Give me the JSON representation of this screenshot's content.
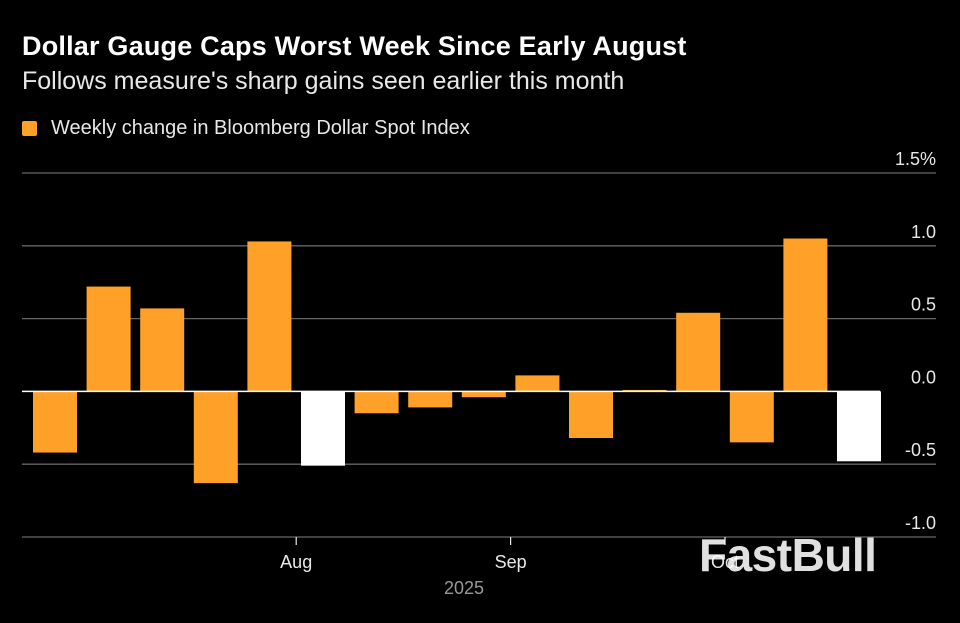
{
  "title": "Dollar Gauge Caps Worst Week Since Early August",
  "subtitle": "Follows measure's sharp gains seen earlier this month",
  "legend": {
    "label": "Weekly change in Bloomberg Dollar Spot Index",
    "color": "#ffa028"
  },
  "watermark": "FastBull",
  "colors": {
    "positive_bar": "#ffa028",
    "highlight_bar": "#ffffff",
    "grid": "#666666",
    "zero_line": "#ffffff",
    "tick_text": "#e8e8e8",
    "year_text": "#999999"
  },
  "chart_data": {
    "type": "bar",
    "title": "Dollar Gauge Caps Worst Week Since Early August",
    "subtitle": "Follows measure's sharp gains seen earlier this month",
    "xlabel": "",
    "ylabel": "",
    "ylim": [
      -1.0,
      1.5
    ],
    "yticks": [
      {
        "value": 1.5,
        "label": "1.5%"
      },
      {
        "value": 1.0,
        "label": "1.0"
      },
      {
        "value": 0.5,
        "label": "0.5"
      },
      {
        "value": 0.0,
        "label": "0.0"
      },
      {
        "value": -0.5,
        "label": "-0.5"
      },
      {
        "value": -1.0,
        "label": "-1.0"
      }
    ],
    "x_tick_labels": [
      {
        "label": "Aug",
        "after_bar": 4
      },
      {
        "label": "Sep",
        "after_bar": 8
      },
      {
        "label": "Oct",
        "after_bar": 12
      }
    ],
    "x_year_label": "2025",
    "grid": true,
    "legend_position": "top-left",
    "series": [
      {
        "name": "Weekly change in Bloomberg Dollar Spot Index",
        "values": [
          -0.42,
          0.72,
          0.57,
          -0.63,
          1.03,
          -0.51,
          -0.15,
          -0.11,
          -0.04,
          0.11,
          -0.32,
          0.01,
          0.54,
          -0.35,
          1.05,
          -0.48
        ],
        "highlight": [
          false,
          false,
          false,
          false,
          false,
          true,
          false,
          false,
          false,
          false,
          false,
          false,
          false,
          false,
          false,
          true
        ]
      }
    ]
  }
}
